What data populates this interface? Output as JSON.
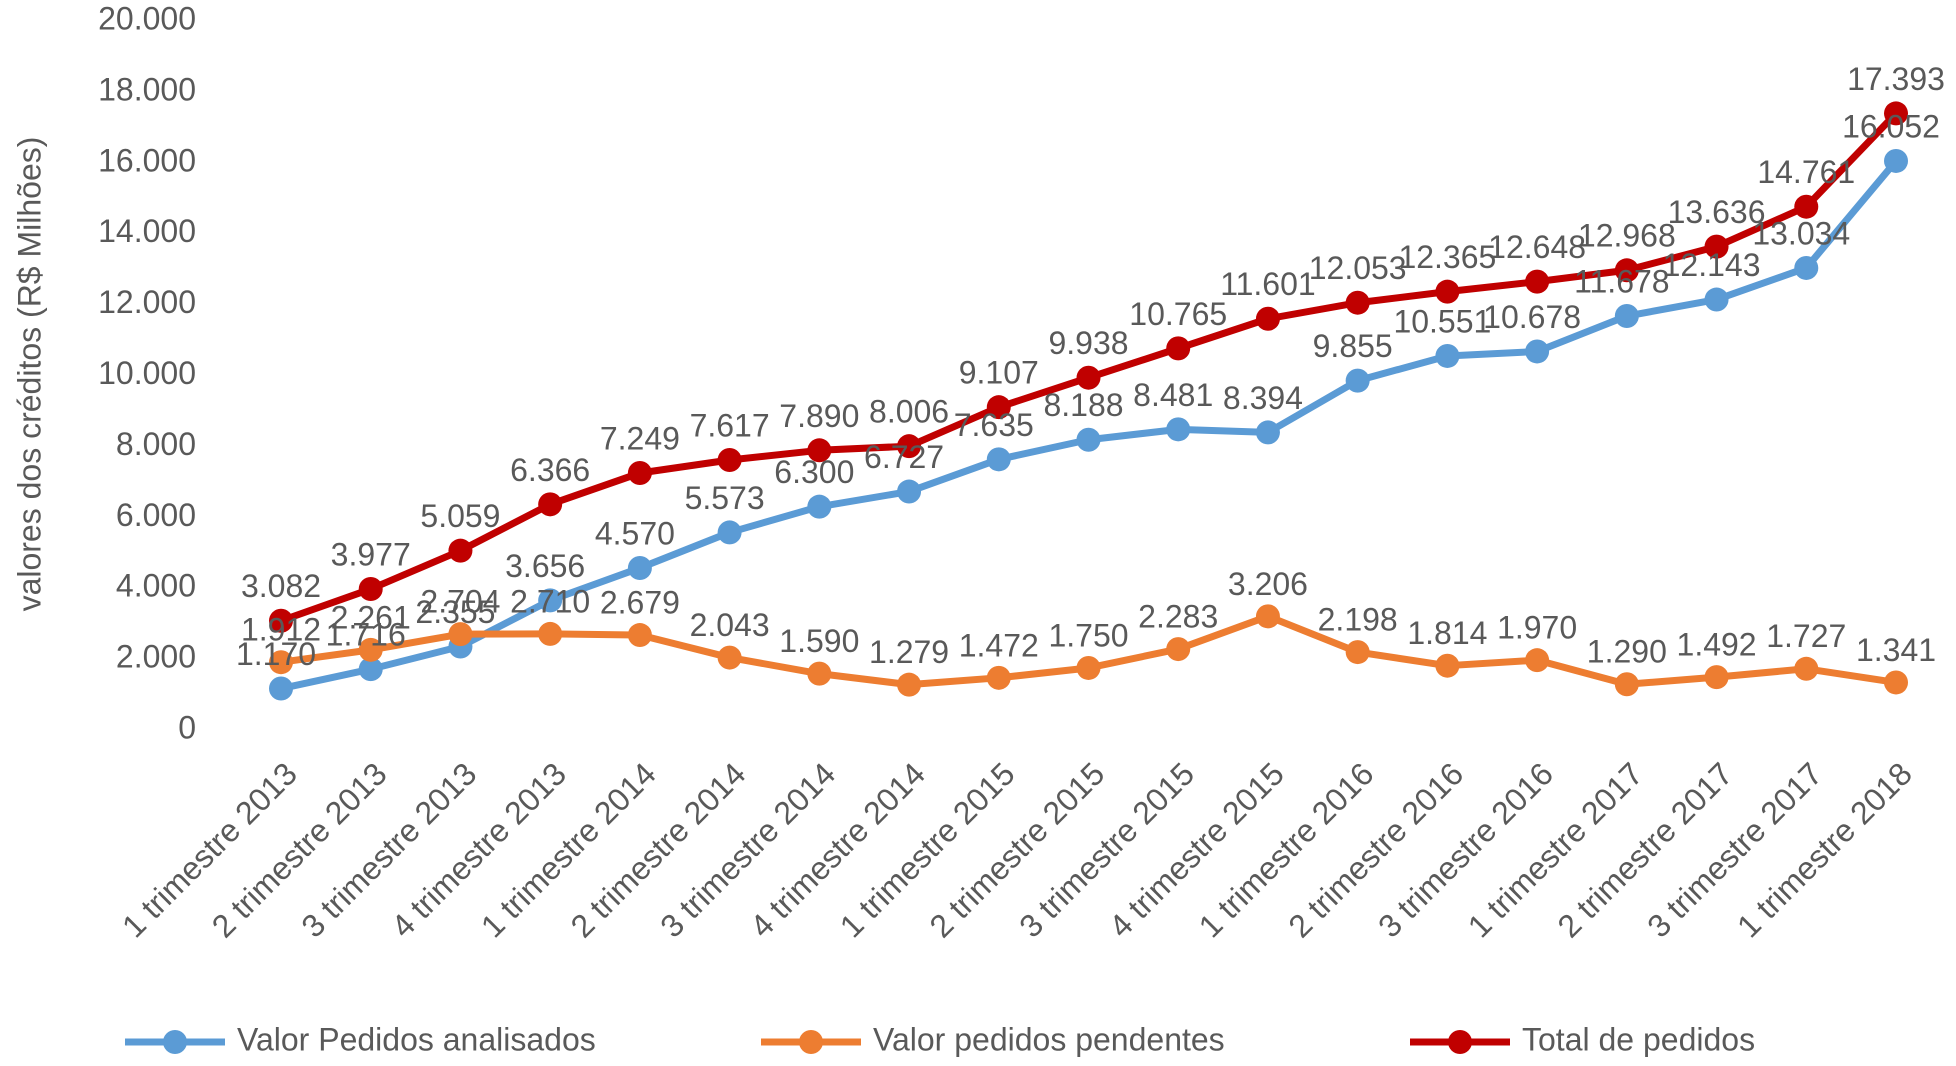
{
  "chart_data": {
    "type": "line",
    "ylabel": "valores dos créditos (R$ Milhões)",
    "categories": [
      "1 trimestre 2013",
      "2 trimestre 2013",
      "3 trimestre 2013",
      "4 trimestre 2013",
      "1 trimestre 2014",
      "2 trimestre 2014",
      "3 trimestre 2014",
      "4 trimestre 2014",
      "1 trimestre 2015",
      "2 trimestre 2015",
      "3 trimestre 2015",
      "4 trimestre 2015",
      "1 trimestre 2016",
      "2 trimestre 2016",
      "3 trimestre 2016",
      "1 trimestre 2017",
      "2 trimestre 2017",
      "3 trimestre 2017",
      "1 trimestre 2018"
    ],
    "series": [
      {
        "name": "Valor Pedidos analisados",
        "color": "#5b9bd5",
        "values": [
          1170,
          1716,
          2355,
          3656,
          4570,
          5573,
          6300,
          6727,
          7635,
          8188,
          8481,
          8394,
          9855,
          10551,
          10678,
          11678,
          12143,
          13034,
          16052
        ],
        "value_labels": [
          "1.170",
          "1.716",
          "2.355",
          "3.656",
          "4.570",
          "5.573",
          "6.300",
          "6.727",
          "7.635",
          "8.188",
          "8.481",
          "8.394",
          "9.855",
          "10.551",
          "10.678",
          "11.678",
          "12.143",
          "13.034",
          "16.052"
        ]
      },
      {
        "name": "Valor pedidos pendentes",
        "color": "#ed7d31",
        "values": [
          1912,
          2261,
          2704,
          2710,
          2679,
          2043,
          1590,
          1279,
          1472,
          1750,
          2283,
          3206,
          2198,
          1814,
          1970,
          1290,
          1492,
          1727,
          1341
        ],
        "value_labels": [
          "1.912",
          "2.261",
          "2.704",
          "2.710",
          "2.679",
          "2.043",
          "1.590",
          "1.279",
          "1.472",
          "1.750",
          "2.283",
          "3.206",
          "2.198",
          "1.814",
          "1.970",
          "1.290",
          "1.492",
          "1.727",
          "1.341"
        ]
      },
      {
        "name": "Total de pedidos",
        "color": "#c00000",
        "values": [
          3082,
          3977,
          5059,
          6366,
          7249,
          7617,
          7890,
          8006,
          9107,
          9938,
          10765,
          11601,
          12053,
          12365,
          12648,
          12968,
          13636,
          14761,
          17393
        ],
        "value_labels": [
          "3.082",
          "3.977",
          "5.059",
          "6.366",
          "7.249",
          "7.617",
          "7.890",
          "8.006",
          "9.107",
          "9.938",
          "10.765",
          "11.601",
          "12.053",
          "12.365",
          "12.648",
          "12.968",
          "13.636",
          "14.761",
          "17.393"
        ]
      }
    ],
    "ylim": [
      0,
      20000
    ],
    "yticks": [
      0,
      {
        "value": 2000,
        "label": "2.000"
      },
      {
        "value": 4000,
        "label": "4.000"
      },
      {
        "value": 6000,
        "label": "6.000"
      },
      {
        "value": 8000,
        "label": "8.000"
      },
      {
        "value": 10000,
        "label": "10.000"
      },
      {
        "value": 12000,
        "label": "12.000"
      },
      {
        "value": 14000,
        "label": "14.000"
      },
      {
        "value": 16000,
        "label": "16.000"
      },
      {
        "value": 18000,
        "label": "18.000"
      },
      {
        "value": 20000,
        "label": "20.000"
      }
    ],
    "grid": false,
    "legend": "bottom"
  }
}
